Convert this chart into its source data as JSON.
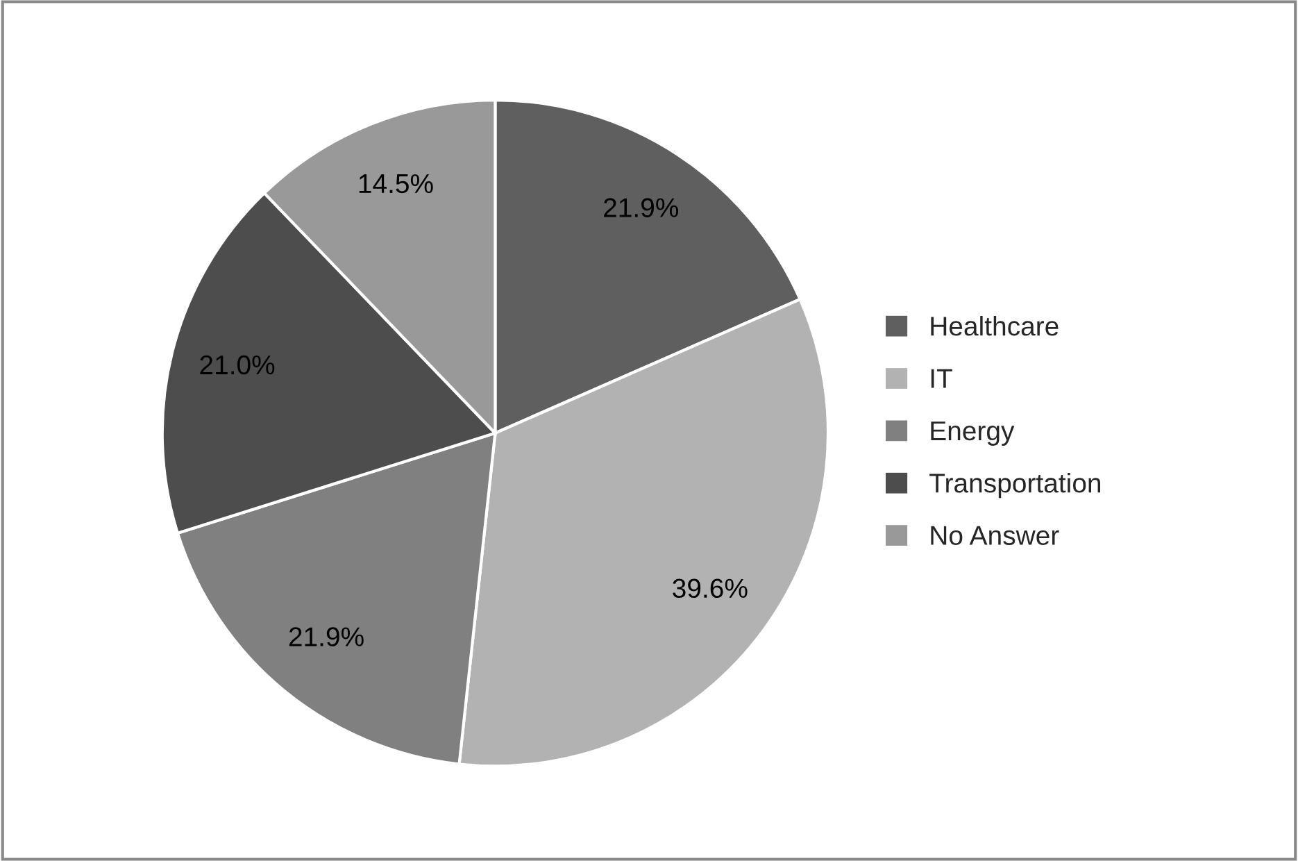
{
  "chart_data": {
    "type": "pie",
    "categories": [
      "Healthcare",
      "IT",
      "Energy",
      "Transportation",
      "No Answer"
    ],
    "values": [
      21.9,
      39.6,
      21.9,
      21.0,
      14.5
    ],
    "value_labels": [
      "21.9%",
      "39.6%",
      "21.9%",
      "21.0%",
      "14.5%"
    ],
    "colors": [
      "#5f5f5f",
      "#b2b2b2",
      "#808080",
      "#4d4d4d",
      "#999999"
    ],
    "legend": "right"
  }
}
